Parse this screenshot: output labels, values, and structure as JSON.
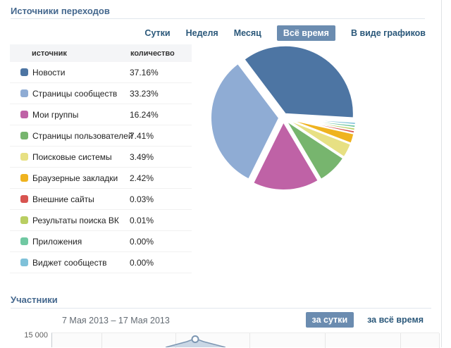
{
  "accent_colors": {
    "heading": "#45688E",
    "link": "#2B587A",
    "active_button_bg": "#6B8CB0",
    "active_button_text": "#FFFFFF"
  },
  "sources_section": {
    "title": "Источники переходов",
    "tabs": [
      {
        "key": "day",
        "label": "Сутки",
        "active": false
      },
      {
        "key": "week",
        "label": "Неделя",
        "active": false
      },
      {
        "key": "month",
        "label": "Месяц",
        "active": false
      },
      {
        "key": "all-time",
        "label": "Всё время",
        "active": true
      },
      {
        "key": "as-graphs",
        "label": "В виде графиков",
        "active": false
      }
    ],
    "table": {
      "headers": {
        "source": "источник",
        "count": "количество"
      },
      "rows": [
        {
          "label": "Новости",
          "value": "37.16%"
        },
        {
          "label": "Страницы сообществ",
          "value": "33.23%"
        },
        {
          "label": "Мои группы",
          "value": "16.24%"
        },
        {
          "label": "Страницы пользователей",
          "value": "7.41%"
        },
        {
          "label": "Поисковые системы",
          "value": "3.49%"
        },
        {
          "label": "Браузерные закладки",
          "value": "2.42%"
        },
        {
          "label": "Внешние сайты",
          "value": "0.03%"
        },
        {
          "label": "Результаты поиска ВК",
          "value": "0.01%"
        },
        {
          "label": "Приложения",
          "value": "0.00%"
        },
        {
          "label": "Виджет сообществ",
          "value": "0.00%"
        }
      ]
    }
  },
  "members_section": {
    "title": "Участники",
    "date_range": "7 Мая 2013 – 17 Мая 2013",
    "buttons": [
      {
        "key": "per-day",
        "label": "за сутки",
        "active": true
      },
      {
        "key": "all-time",
        "label": "за всё время",
        "active": false
      }
    ],
    "y_tick": "15 000"
  },
  "chart_data": [
    {
      "type": "pie",
      "title": "Источники переходов",
      "unit": "%",
      "categories": [
        "Новости",
        "Страницы сообществ",
        "Мои группы",
        "Страницы пользователей",
        "Поисковые системы",
        "Браузерные закладки",
        "Внешние сайты",
        "Результаты поиска ВК",
        "Приложения",
        "Виджет сообществ"
      ],
      "values": [
        37.16,
        33.23,
        16.24,
        7.41,
        3.49,
        2.42,
        0.03,
        0.01,
        0.0,
        0.0
      ],
      "colors": [
        "#4D75A3",
        "#8FACD4",
        "#BF62A6",
        "#77B56E",
        "#E7E083",
        "#EFB31F",
        "#D85450",
        "#B9CE62",
        "#70C8A2",
        "#7FC1D9"
      ],
      "legend_position": "left",
      "style": "exploded",
      "start_angle_deg": -37,
      "min_visible_slice_pct": 0.65
    },
    {
      "type": "area",
      "title": "Участники",
      "x_range_label": "7 Мая 2013 – 17 Мая 2013",
      "visible_y_ticks": [
        "15 000"
      ],
      "partially_visible": true
    }
  ]
}
